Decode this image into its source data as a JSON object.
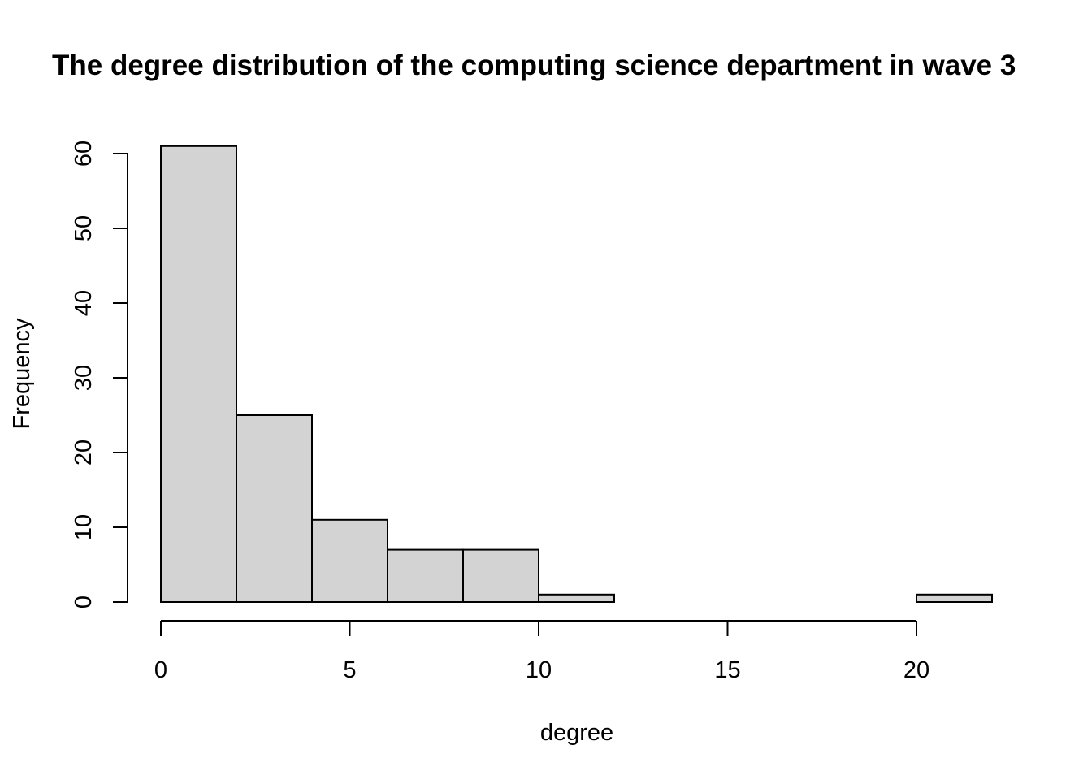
{
  "chart_data": {
    "type": "bar",
    "title": "The degree distribution of the computing science department in wave 3",
    "xlabel": "degree",
    "ylabel": "Frequency",
    "bins": [
      {
        "start": 0,
        "end": 2,
        "count": 61
      },
      {
        "start": 2,
        "end": 4,
        "count": 25
      },
      {
        "start": 4,
        "end": 6,
        "count": 11
      },
      {
        "start": 6,
        "end": 8,
        "count": 7
      },
      {
        "start": 8,
        "end": 10,
        "count": 7
      },
      {
        "start": 10,
        "end": 12,
        "count": 1
      },
      {
        "start": 12,
        "end": 14,
        "count": 0
      },
      {
        "start": 14,
        "end": 16,
        "count": 0
      },
      {
        "start": 16,
        "end": 18,
        "count": 0
      },
      {
        "start": 18,
        "end": 20,
        "count": 0
      },
      {
        "start": 20,
        "end": 22,
        "count": 1
      }
    ],
    "x_ticks": [
      "0",
      "5",
      "10",
      "15",
      "20"
    ],
    "y_ticks": [
      "0",
      "10",
      "20",
      "30",
      "40",
      "50",
      "60"
    ],
    "xlim": [
      0,
      22
    ],
    "ylim": [
      0,
      61
    ],
    "grid": false,
    "bar_fill": "#d3d3d3",
    "bar_stroke": "#000000"
  }
}
